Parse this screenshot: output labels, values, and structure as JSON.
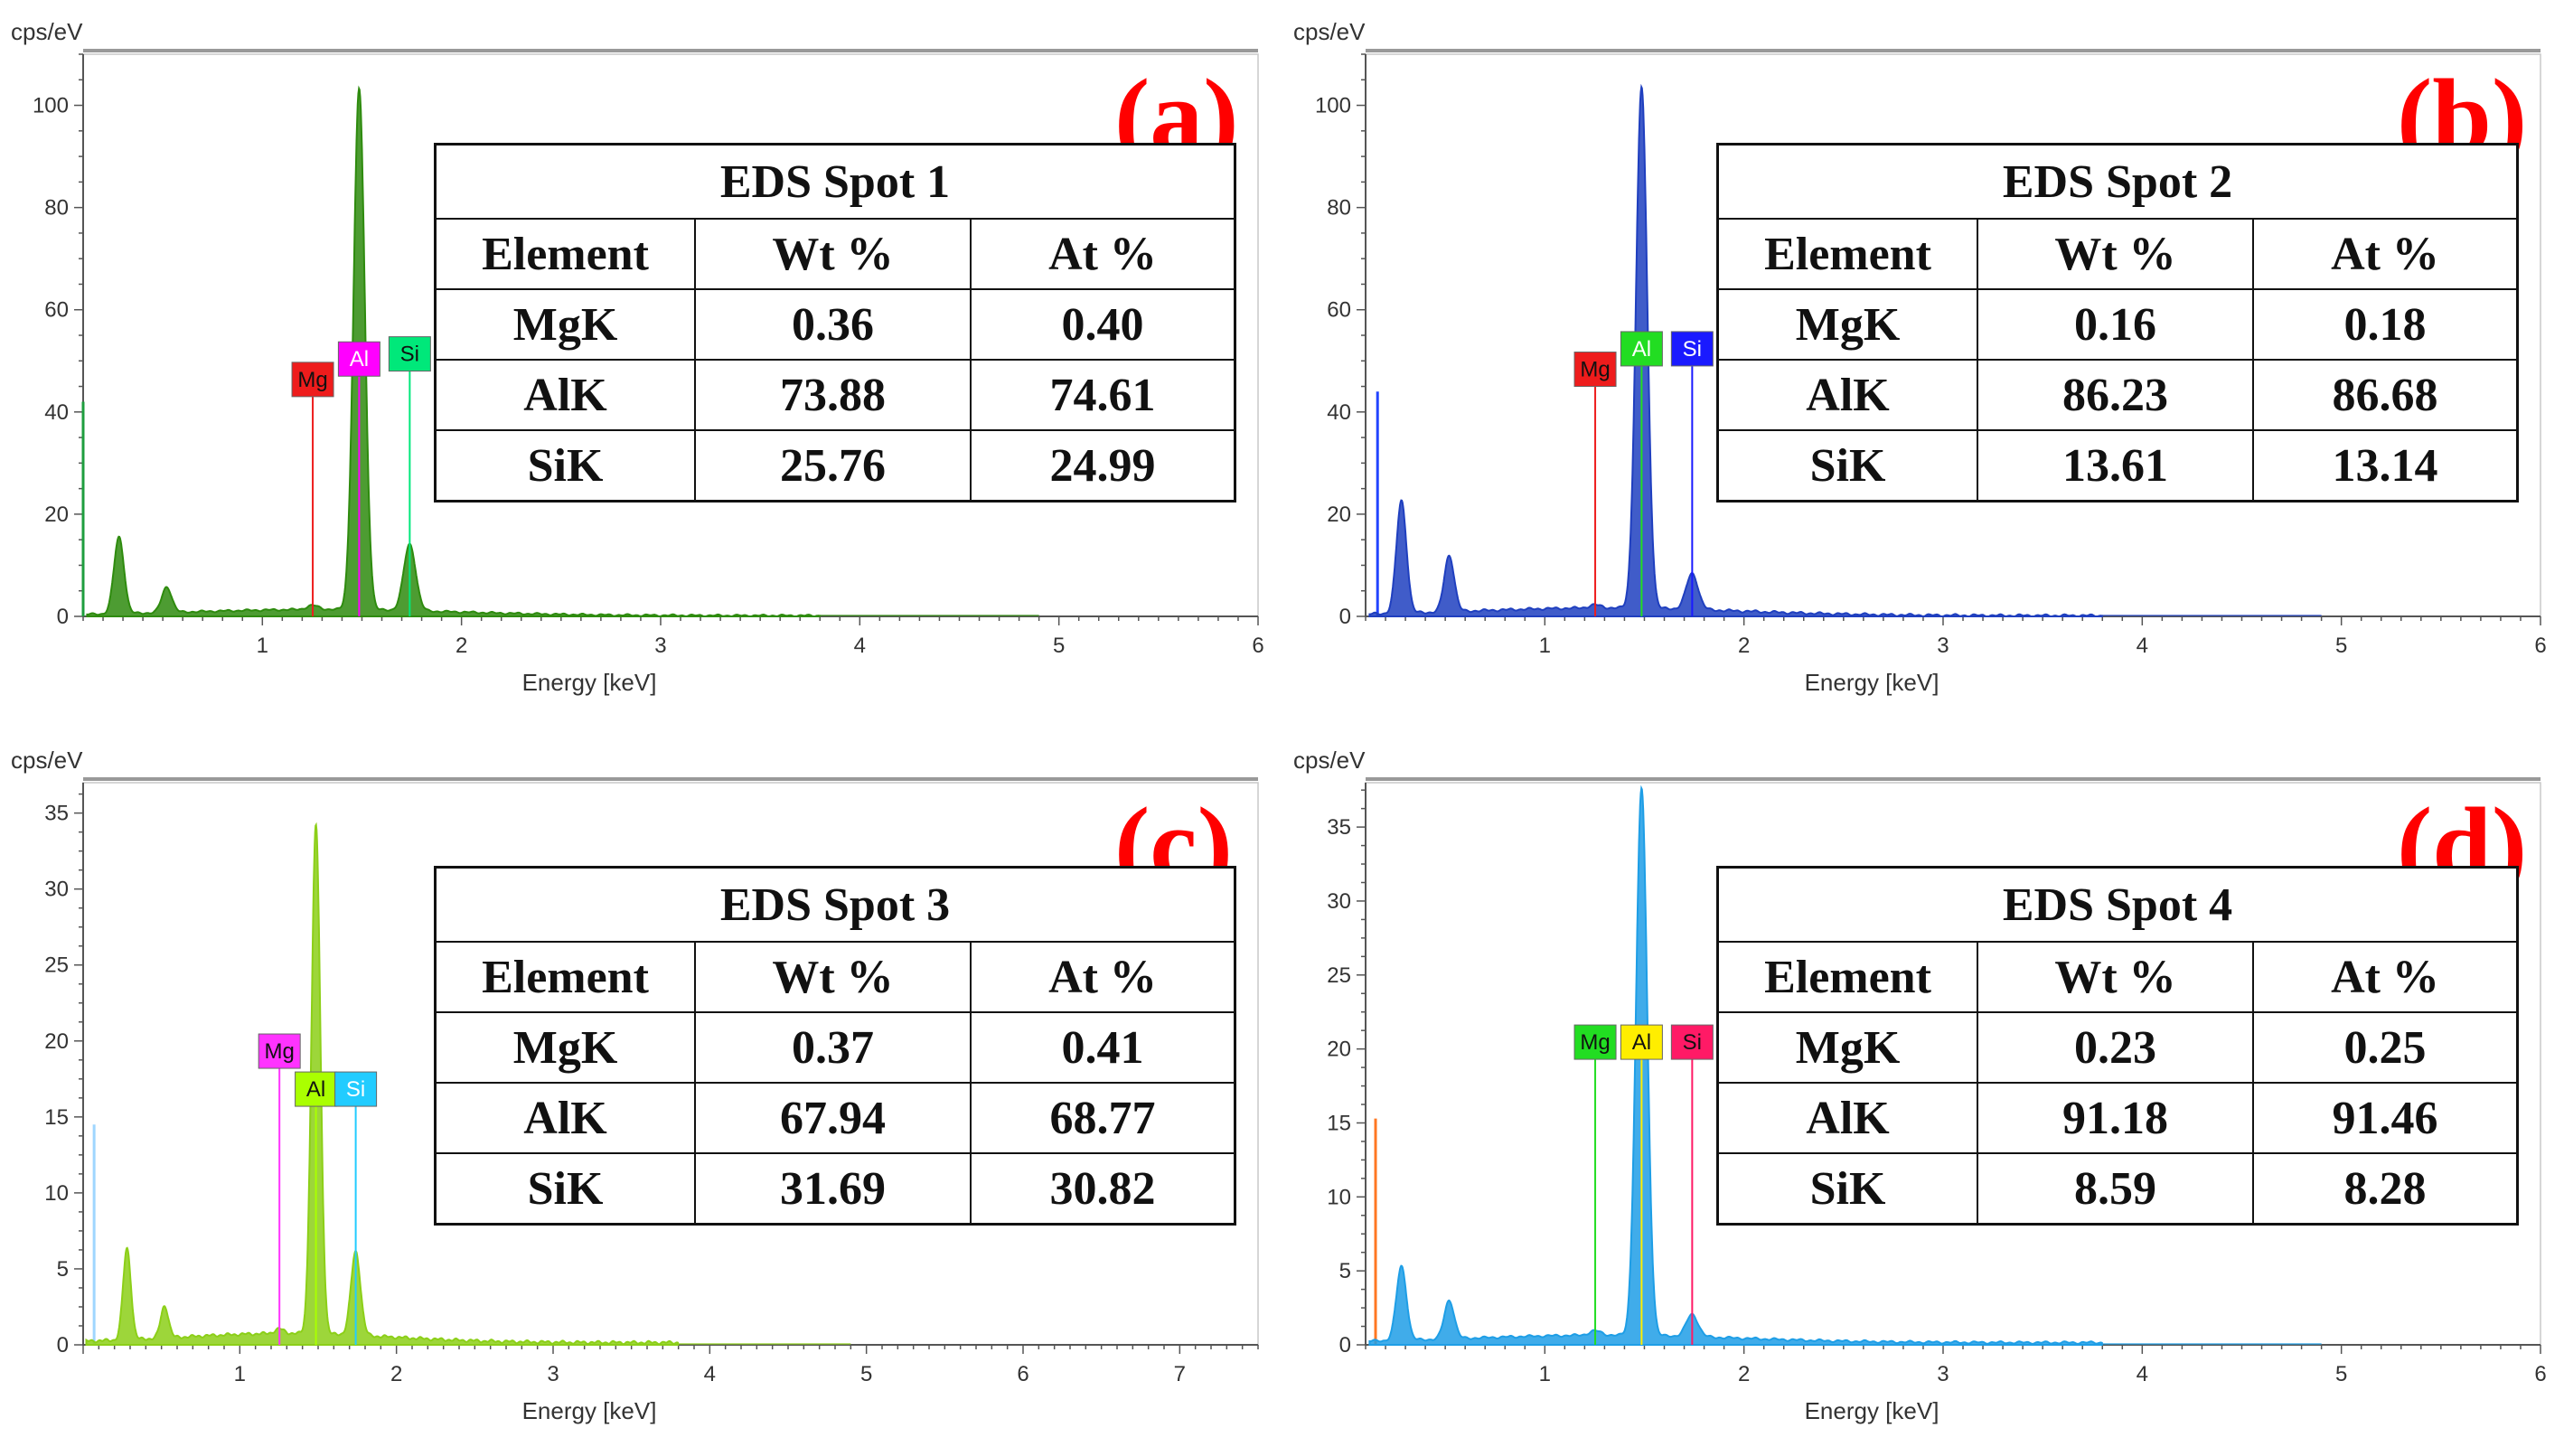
{
  "chart_data": [
    {
      "type": "line",
      "panel_label": "(a)",
      "title": "EDS Spot 1",
      "ylabel": "cps/eV",
      "xlabel": "Energy [keV]",
      "xlim": [
        0.1,
        6
      ],
      "ylim": [
        0,
        110
      ],
      "xticks": [
        1,
        2,
        3,
        4,
        5,
        6
      ],
      "yticks": [
        0,
        20,
        40,
        60,
        80,
        100
      ],
      "color": "#2e8b0e",
      "peaks": [
        {
          "x": 0.28,
          "y": 15,
          "w": 0.025
        },
        {
          "x": 0.52,
          "y": 5,
          "w": 0.025
        },
        {
          "x": 1.253,
          "y": 0.8,
          "w": 0.03
        },
        {
          "x": 1.486,
          "y": 102,
          "w": 0.028
        },
        {
          "x": 1.74,
          "y": 13,
          "w": 0.03
        }
      ],
      "background": 1.2,
      "edge_line": {
        "x": 0.1,
        "y": 42,
        "color": "#1e9e3e"
      },
      "element_markers": [
        {
          "label": "Mg",
          "x": 1.253,
          "y": 43,
          "bg": "#ee1c1c",
          "fg": "#111111"
        },
        {
          "label": "Al",
          "x": 1.486,
          "y": 47,
          "bg": "#ff00ff",
          "fg": "#ffffff"
        },
        {
          "label": "Si",
          "x": 1.74,
          "y": 48,
          "bg": "#00e87a",
          "fg": "#111111"
        }
      ],
      "table": {
        "headers": [
          "Element",
          "Wt %",
          "At %"
        ],
        "rows": [
          [
            "MgK",
            "0.36",
            "0.40"
          ],
          [
            "AlK",
            "73.88",
            "74.61"
          ],
          [
            "SiK",
            "25.76",
            "24.99"
          ]
        ]
      }
    },
    {
      "type": "line",
      "panel_label": "(b)",
      "title": "EDS Spot 2",
      "ylabel": "cps/eV",
      "xlabel": "Energy [keV]",
      "xlim": [
        0.1,
        6
      ],
      "ylim": [
        0,
        110
      ],
      "xticks": [
        1,
        2,
        3,
        4,
        5,
        6
      ],
      "yticks": [
        0,
        20,
        40,
        60,
        80,
        100
      ],
      "color": "#1f3fbf",
      "peaks": [
        {
          "x": 0.28,
          "y": 22,
          "w": 0.025
        },
        {
          "x": 0.52,
          "y": 11,
          "w": 0.025
        },
        {
          "x": 1.253,
          "y": 0.6,
          "w": 0.03
        },
        {
          "x": 1.486,
          "y": 102,
          "w": 0.028
        },
        {
          "x": 1.74,
          "y": 7,
          "w": 0.03
        }
      ],
      "background": 1.5,
      "edge_line": {
        "x": 0.16,
        "y": 44,
        "color": "#2244ff"
      },
      "element_markers": [
        {
          "label": "Mg",
          "x": 1.253,
          "y": 45,
          "bg": "#ee1c1c",
          "fg": "#111111"
        },
        {
          "label": "Al",
          "x": 1.486,
          "y": 49,
          "bg": "#22dd22",
          "fg": "#ffffff"
        },
        {
          "label": "Si",
          "x": 1.74,
          "y": 49,
          "bg": "#1a1aff",
          "fg": "#ffffff"
        }
      ],
      "table": {
        "headers": [
          "Element",
          "Wt %",
          "At %"
        ],
        "rows": [
          [
            "MgK",
            "0.16",
            "0.18"
          ],
          [
            "AlK",
            "86.23",
            "86.68"
          ],
          [
            "SiK",
            "13.61",
            "13.14"
          ]
        ]
      }
    },
    {
      "type": "line",
      "panel_label": "(c)",
      "title": "EDS Spot 3",
      "ylabel": "cps/eV",
      "xlabel": "Energy [keV]",
      "xlim": [
        0.0,
        7.5
      ],
      "ylim": [
        0,
        37
      ],
      "xticks": [
        1,
        2,
        3,
        4,
        5,
        6,
        7
      ],
      "yticks": [
        0,
        5,
        10,
        15,
        20,
        25,
        30,
        35
      ],
      "color": "#8ccf18",
      "peaks": [
        {
          "x": 0.28,
          "y": 6,
          "w": 0.025
        },
        {
          "x": 0.52,
          "y": 2.1,
          "w": 0.025
        },
        {
          "x": 1.253,
          "y": 0.3,
          "w": 0.03
        },
        {
          "x": 1.486,
          "y": 33.5,
          "w": 0.028
        },
        {
          "x": 1.74,
          "y": 5.5,
          "w": 0.03
        }
      ],
      "background": 0.6,
      "edge_line": {
        "x": 0.07,
        "y": 14.5,
        "color": "#9fd6ff"
      },
      "element_markers": [
        {
          "label": "Mg",
          "x": 1.253,
          "y": 18.2,
          "bg": "#ff33ff",
          "fg": "#111111"
        },
        {
          "label": "Al",
          "x": 1.486,
          "y": 15.7,
          "bg": "#aaff00",
          "fg": "#111111"
        },
        {
          "label": "Si",
          "x": 1.74,
          "y": 15.7,
          "bg": "#22ccff",
          "fg": "#ffffff"
        }
      ],
      "table": {
        "headers": [
          "Element",
          "Wt %",
          "At %"
        ],
        "rows": [
          [
            "MgK",
            "0.37",
            "0.41"
          ],
          [
            "AlK",
            "67.94",
            "68.77"
          ],
          [
            "SiK",
            "31.69",
            "30.82"
          ]
        ]
      }
    },
    {
      "type": "line",
      "panel_label": "(d)",
      "title": "EDS Spot 4",
      "ylabel": "cps/eV",
      "xlabel": "Energy [keV]",
      "xlim": [
        0.1,
        6
      ],
      "ylim": [
        0,
        38
      ],
      "xticks": [
        1,
        2,
        3,
        4,
        5,
        6
      ],
      "yticks": [
        0,
        5,
        10,
        15,
        20,
        25,
        30,
        35
      ],
      "color": "#1e9ee6",
      "peaks": [
        {
          "x": 0.28,
          "y": 5,
          "w": 0.025
        },
        {
          "x": 0.52,
          "y": 2.6,
          "w": 0.025
        },
        {
          "x": 1.253,
          "y": 0.3,
          "w": 0.03
        },
        {
          "x": 1.486,
          "y": 37,
          "w": 0.028
        },
        {
          "x": 1.74,
          "y": 1.5,
          "w": 0.03
        }
      ],
      "background": 0.5,
      "edge_line": {
        "x": 0.15,
        "y": 15.3,
        "color": "#ff7722"
      },
      "element_markers": [
        {
          "label": "Mg",
          "x": 1.253,
          "y": 19.3,
          "bg": "#22dd22",
          "fg": "#111111"
        },
        {
          "label": "Al",
          "x": 1.486,
          "y": 19.3,
          "bg": "#ffee00",
          "fg": "#111111"
        },
        {
          "label": "Si",
          "x": 1.74,
          "y": 19.3,
          "bg": "#ff1a66",
          "fg": "#111111"
        }
      ],
      "table": {
        "headers": [
          "Element",
          "Wt %",
          "At %"
        ],
        "rows": [
          [
            "MgK",
            "0.23",
            "0.25"
          ],
          [
            "AlK",
            "91.18",
            "91.46"
          ],
          [
            "SiK",
            "8.59",
            "8.28"
          ]
        ]
      }
    }
  ]
}
